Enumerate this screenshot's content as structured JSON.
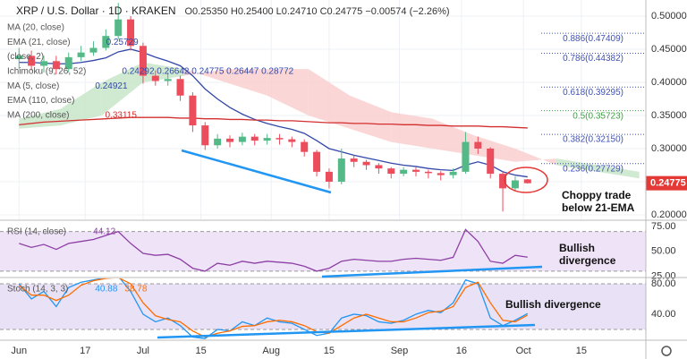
{
  "chart_data": [
    {
      "type": "candlestick",
      "title": "XRP / U.S. Dollar · 1D · KRAKEN",
      "subtitle": "O0.25350 H0.25400 L0.24710 C0.24775 −0.00574 (−2.26%)",
      "x": [
        0,
        3,
        6,
        9,
        12,
        15,
        18,
        21,
        24,
        27,
        30,
        33,
        36,
        39,
        42,
        45,
        48,
        51,
        54,
        57,
        60,
        63,
        66,
        69,
        72,
        75,
        78,
        81,
        84,
        87,
        90,
        93,
        96,
        99,
        102,
        105,
        108,
        111,
        114,
        117,
        120,
        123
      ],
      "open": [
        0.435,
        0.44,
        0.425,
        0.432,
        0.42,
        0.438,
        0.445,
        0.452,
        0.47,
        0.495,
        0.455,
        0.41,
        0.402,
        0.405,
        0.38,
        0.335,
        0.305,
        0.315,
        0.31,
        0.318,
        0.312,
        0.316,
        0.314,
        0.31,
        0.295,
        0.265,
        0.25,
        0.285,
        0.28,
        0.275,
        0.27,
        0.262,
        0.268,
        0.265,
        0.263,
        0.26,
        0.265,
        0.31,
        0.3,
        0.262,
        0.24,
        0.2535
      ],
      "high": [
        0.452,
        0.448,
        0.44,
        0.44,
        0.445,
        0.455,
        0.462,
        0.48,
        0.52,
        0.5,
        0.46,
        0.418,
        0.415,
        0.41,
        0.385,
        0.34,
        0.322,
        0.32,
        0.324,
        0.322,
        0.322,
        0.322,
        0.318,
        0.314,
        0.298,
        0.27,
        0.3,
        0.29,
        0.283,
        0.278,
        0.272,
        0.272,
        0.272,
        0.268,
        0.266,
        0.27,
        0.325,
        0.318,
        0.302,
        0.265,
        0.258,
        0.254
      ],
      "low": [
        0.42,
        0.418,
        0.415,
        0.412,
        0.415,
        0.432,
        0.44,
        0.448,
        0.465,
        0.448,
        0.398,
        0.395,
        0.395,
        0.372,
        0.325,
        0.298,
        0.3,
        0.302,
        0.305,
        0.305,
        0.306,
        0.306,
        0.302,
        0.288,
        0.258,
        0.24,
        0.246,
        0.272,
        0.268,
        0.262,
        0.255,
        0.258,
        0.258,
        0.255,
        0.252,
        0.255,
        0.262,
        0.292,
        0.255,
        0.205,
        0.236,
        0.2471
      ],
      "close": [
        0.44,
        0.425,
        0.432,
        0.42,
        0.438,
        0.445,
        0.452,
        0.47,
        0.495,
        0.455,
        0.41,
        0.402,
        0.405,
        0.38,
        0.335,
        0.305,
        0.315,
        0.31,
        0.318,
        0.312,
        0.316,
        0.314,
        0.31,
        0.295,
        0.265,
        0.25,
        0.285,
        0.28,
        0.275,
        0.27,
        0.262,
        0.268,
        0.265,
        0.263,
        0.26,
        0.265,
        0.31,
        0.3,
        0.262,
        0.24,
        0.252,
        0.24775
      ],
      "up_color": "#53b987",
      "down_color": "#eb4d5c",
      "series": [
        {
          "color": "#3248a8",
          "values": [
            0.43,
            0.43,
            0.429,
            0.428,
            0.428,
            0.43,
            0.433,
            0.437,
            0.446,
            0.45,
            0.445,
            0.438,
            0.432,
            0.425,
            0.41,
            0.39,
            0.375,
            0.362,
            0.352,
            0.344,
            0.338,
            0.333,
            0.329,
            0.323,
            0.312,
            0.3,
            0.295,
            0.29,
            0.286,
            0.282,
            0.278,
            0.275,
            0.273,
            0.27,
            0.268,
            0.267,
            0.275,
            0.28,
            0.275,
            0.265,
            0.26,
            0.25729
          ]
        },
        {
          "color": "#d32f2f",
          "values": [
            0.336,
            0.338,
            0.34,
            0.341,
            0.342,
            0.343,
            0.344,
            0.345,
            0.346,
            0.347,
            0.347,
            0.347,
            0.347,
            0.346,
            0.346,
            0.345,
            0.345,
            0.344,
            0.344,
            0.343,
            0.343,
            0.342,
            0.342,
            0.341,
            0.34,
            0.339,
            0.339,
            0.338,
            0.338,
            0.337,
            0.337,
            0.336,
            0.336,
            0.335,
            0.335,
            0.334,
            0.334,
            0.334,
            0.333,
            0.333,
            0.332,
            0.33115
          ]
        }
      ],
      "cloud": {
        "x": [
          0,
          10,
          20,
          30,
          40,
          50,
          60,
          70,
          80,
          90,
          100,
          110,
          120,
          130,
          140,
          150
        ],
        "span_a": [
          0.345,
          0.36,
          0.4,
          0.43,
          0.42,
          0.4,
          0.38,
          0.35,
          0.33,
          0.31,
          0.3,
          0.29,
          0.28,
          0.285,
          0.275,
          0.265
        ],
        "span_b": [
          0.33,
          0.335,
          0.35,
          0.4,
          0.41,
          0.42,
          0.42,
          0.42,
          0.38,
          0.355,
          0.345,
          0.32,
          0.3,
          0.275,
          0.265,
          0.255
        ],
        "up_color": "#c8e6c9",
        "down_color": "#f9cfcf"
      },
      "legend": [
        {
          "name": "MA (20, close)"
        },
        {
          "name": "EMA (21, close)",
          "value": "0.25729",
          "color": "#3248a8"
        },
        {
          "name": "(close, 2)"
        },
        {
          "name": "Ichimoku (9, 26, 52)",
          "value": "0.24292  0.26642  0.24775  0.26447  0.28772",
          "color": "#3248a8"
        },
        {
          "name": "MA (5, close)",
          "value": "0.24921",
          "color": "#3248a8"
        },
        {
          "name": "EMA (110, close)"
        },
        {
          "name": "MA (200, close)",
          "value": "0.33115",
          "color": "#d32f2f"
        }
      ],
      "fib_levels": [
        {
          "value": 0.47409,
          "label": "0.886(0.47409)",
          "color": "#3f51b5"
        },
        {
          "value": 0.44382,
          "label": "0.786(0.44382)",
          "color": "#3f51b5"
        },
        {
          "value": 0.39295,
          "label": "0.618(0.39295)",
          "color": "#3f51b5"
        },
        {
          "value": 0.35723,
          "label": "0.5(0.35723)",
          "color": "#43a047"
        },
        {
          "value": 0.3215,
          "label": "0.382(0.32150)",
          "color": "#3f51b5"
        },
        {
          "value": 0.27729,
          "label": "0.236(0.27729)",
          "color": "#3f51b5"
        }
      ],
      "annotation": "Choppy trade below 21-EMA",
      "last_price_color": "#e53935",
      "xlim": [
        -4.6,
        151.6
      ],
      "ylim": [
        0.1932,
        0.5243
      ],
      "yticks": [
        {
          "value": 0.2,
          "label": "0.20000"
        },
        {
          "value": 0.25,
          "label": "0.25000"
        },
        {
          "value": 0.3,
          "label": "0.30000"
        },
        {
          "value": 0.35,
          "label": "0.35000"
        },
        {
          "value": 0.4,
          "label": "0.40000"
        },
        {
          "value": 0.45,
          "label": "0.45000"
        },
        {
          "value": 0.5,
          "label": "0.50000"
        }
      ],
      "grid": true
    },
    {
      "type": "line",
      "title": "RSI (14, close)",
      "last_label": "44.12",
      "x": [
        0,
        3,
        6,
        9,
        12,
        15,
        18,
        21,
        24,
        27,
        30,
        33,
        36,
        39,
        42,
        45,
        48,
        51,
        54,
        57,
        60,
        63,
        66,
        69,
        72,
        75,
        78,
        81,
        84,
        87,
        90,
        93,
        96,
        99,
        102,
        105,
        108,
        111,
        114,
        117,
        120,
        123
      ],
      "series": [
        {
          "color": "#8e3fa5",
          "values": [
            58,
            54,
            57,
            52,
            58,
            60,
            62,
            66,
            70,
            58,
            48,
            46,
            47,
            42,
            33,
            30,
            38,
            36,
            40,
            38,
            40,
            39,
            38,
            35,
            30,
            33,
            40,
            42,
            41,
            40,
            40,
            42,
            43,
            42,
            41,
            44,
            72,
            60,
            40,
            38,
            46,
            44.12
          ]
        }
      ],
      "bands": [
        30,
        70
      ],
      "band_color": "#efe4f7",
      "annotation": "Bullish divergence",
      "xlim": [
        -4.6,
        151.6
      ],
      "ylim": [
        24.5,
        80.5
      ],
      "yticks": [
        {
          "value": 25,
          "label": "25.00"
        },
        {
          "value": 50,
          "label": "50.00"
        },
        {
          "value": 75,
          "label": "75.00"
        }
      ]
    },
    {
      "type": "line",
      "title": "Stoch (14, 3, 3)",
      "last_labels": [
        "40.88",
        "38.78"
      ],
      "x": [
        0,
        3,
        6,
        9,
        12,
        15,
        18,
        21,
        24,
        27,
        30,
        33,
        36,
        39,
        42,
        45,
        48,
        51,
        54,
        57,
        60,
        63,
        66,
        69,
        72,
        75,
        78,
        81,
        84,
        87,
        90,
        93,
        96,
        99,
        102,
        105,
        108,
        111,
        114,
        117,
        120,
        123
      ],
      "series": [
        {
          "color": "#2196f3",
          "values": [
            80,
            60,
            70,
            50,
            75,
            82,
            85,
            88,
            90,
            70,
            40,
            30,
            35,
            25,
            10,
            8,
            20,
            18,
            30,
            25,
            35,
            30,
            28,
            20,
            12,
            15,
            35,
            40,
            38,
            30,
            28,
            32,
            40,
            45,
            42,
            55,
            85,
            80,
            35,
            25,
            32,
            40.88
          ]
        },
        {
          "color": "#ff6d00",
          "values": [
            78,
            65,
            65,
            58,
            65,
            78,
            84,
            87,
            88,
            80,
            55,
            38,
            33,
            30,
            18,
            10,
            15,
            18,
            24,
            25,
            30,
            32,
            30,
            25,
            17,
            15,
            25,
            35,
            40,
            35,
            30,
            30,
            35,
            42,
            44,
            50,
            75,
            82,
            55,
            32,
            30,
            38.78
          ]
        }
      ],
      "bands": [
        20,
        80
      ],
      "band_color": "#e9e1f5",
      "annotation": "Bullish divergence",
      "xlim": [
        -4.6,
        151.6
      ],
      "ylim": [
        7,
        87
      ],
      "yticks": [
        {
          "value": 40,
          "label": "40.00"
        },
        {
          "value": 80,
          "label": "80.00"
        }
      ],
      "xticks": [
        {
          "value": 0,
          "label": "Jun"
        },
        {
          "value": 16,
          "label": "17"
        },
        {
          "value": 30,
          "label": "Jul"
        },
        {
          "value": 44,
          "label": "15"
        },
        {
          "value": 61,
          "label": "Aug"
        },
        {
          "value": 75,
          "label": "15"
        },
        {
          "value": 92,
          "label": "Sep"
        },
        {
          "value": 107,
          "label": "16"
        },
        {
          "value": 122,
          "label": "Oct"
        },
        {
          "value": 136,
          "label": "15"
        }
      ]
    }
  ]
}
